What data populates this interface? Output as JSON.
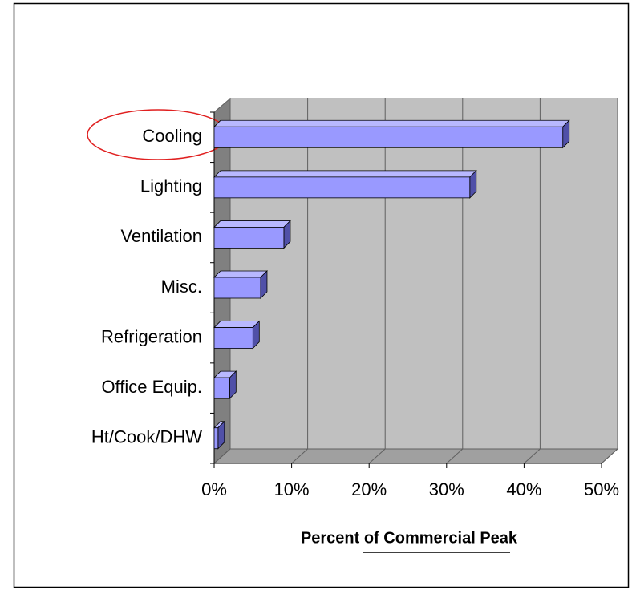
{
  "chart_data": {
    "type": "bar",
    "orientation": "horizontal",
    "x_label": "Percent of Commercial Peak",
    "categories": [
      "Cooling",
      "Lighting",
      "Ventilation",
      "Misc.",
      "Refrigeration",
      "Office Equip.",
      "Ht/Cook/DHW"
    ],
    "values": [
      45,
      33,
      9,
      6,
      5,
      2,
      0.5
    ],
    "color": "#9999ff",
    "xlim": [
      0,
      50
    ],
    "xticks": [
      {
        "value": 0,
        "label": "0%"
      },
      {
        "value": 10,
        "label": "10%"
      },
      {
        "value": 20,
        "label": "20%"
      },
      {
        "value": 30,
        "label": "30%"
      },
      {
        "value": 40,
        "label": "40%"
      },
      {
        "value": 50,
        "label": "50%"
      }
    ],
    "grid": true
  }
}
